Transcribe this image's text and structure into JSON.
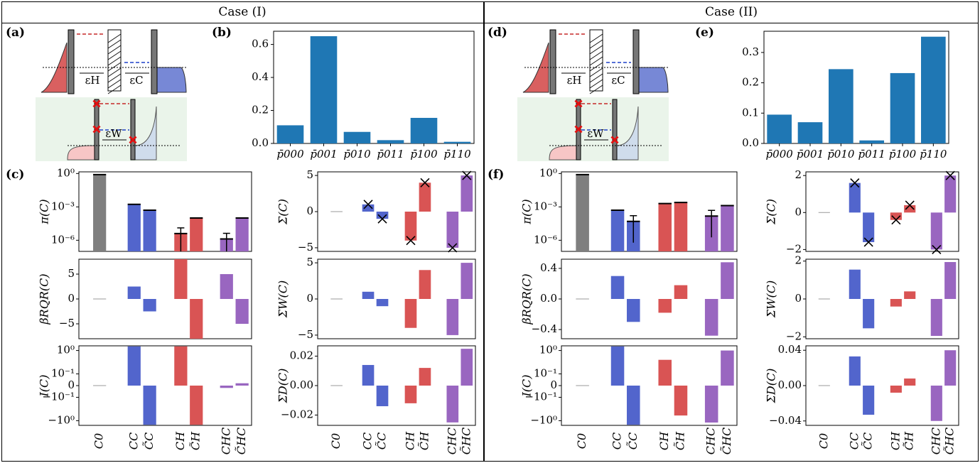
{
  "cases": [
    {
      "title": "Case (I)",
      "labels": [
        "(a)",
        "(b)",
        "(c)"
      ]
    },
    {
      "title": "Case (II)",
      "labels": [
        "(d)",
        "(e)",
        "(f)"
      ]
    }
  ],
  "schematic": {
    "eps_h": "εH",
    "eps_c": "εC",
    "eps_w": "εW"
  },
  "colors": {
    "blue_bar": "#1f77b4",
    "c_blue": "#5265cc",
    "c_red": "#d95454",
    "c_purple": "#9966c0",
    "c_gray": "#7f7f7f",
    "hot_fill": "#d96060",
    "cold_fill": "#7788d6",
    "hot_light": "#f7c6c6",
    "cold_light": "#cfdcec",
    "green_box": "#eaf4ea"
  },
  "chart_data": [
    {
      "id": "b",
      "type": "bar",
      "categories": [
        "p̄000",
        "p̄001",
        "p̄010",
        "p̄011",
        "p̄100",
        "p̄110"
      ],
      "values": [
        0.11,
        0.65,
        0.07,
        0.02,
        0.155,
        0.01
      ],
      "yticks": [
        "0.0",
        "0.2",
        "0.4",
        "0.6"
      ],
      "ylim": [
        0,
        0.68
      ]
    },
    {
      "id": "e",
      "type": "bar",
      "categories": [
        "p̄000",
        "p̄001",
        "p̄010",
        "p̄011",
        "p̄100",
        "p̄110"
      ],
      "values": [
        0.095,
        0.07,
        0.245,
        0.01,
        0.232,
        0.352
      ],
      "yticks": [
        "0.0",
        "0.1",
        "0.2",
        "0.3"
      ],
      "ylim": [
        0,
        0.37
      ]
    },
    {
      "id": "c_pi",
      "type": "bar",
      "scale": "log",
      "ylabel": "π(C)",
      "categories": [
        "C0",
        "CC",
        "C̃C",
        "CH",
        "C̃H",
        "CHC",
        "C̃HC"
      ],
      "values": [
        0.8,
        0.0017,
        0.0005,
        4e-06,
        0.0001,
        1.3e-06,
        0.0001
      ],
      "errors": [
        0,
        0,
        0,
        1,
        0,
        1,
        0
      ],
      "yticks": [
        "10⁰",
        "10⁻³",
        "10⁻⁶"
      ]
    },
    {
      "id": "c_sigma",
      "type": "bar",
      "ylabel": "Σ(C)",
      "categories": [
        "C0",
        "CC",
        "C̃C",
        "CH",
        "C̃H",
        "CHC",
        "C̃HC"
      ],
      "values": [
        0,
        1.0,
        -1.0,
        -4.0,
        4.0,
        -5.0,
        5.0
      ],
      "markers": [
        null,
        1.0,
        -1.0,
        -4.0,
        4.0,
        -5.0,
        5.0
      ],
      "yticks": [
        "5",
        "0",
        "−5"
      ],
      "ylim": [
        -5.5,
        5.5
      ]
    },
    {
      "id": "c_bq",
      "type": "bar",
      "ylabel": "βRQR(C)",
      "categories": [
        "C0",
        "CC",
        "C̃C",
        "CH",
        "C̃H",
        "CHC",
        "C̃HC"
      ],
      "values": [
        0,
        2.5,
        -2.5,
        8.0,
        -8.0,
        5.0,
        -5.0
      ],
      "yticks": [
        "5",
        "0",
        "−5"
      ],
      "ylim": [
        -8,
        8
      ]
    },
    {
      "id": "c_sw",
      "type": "bar",
      "ylabel": "ΣW(C)",
      "categories": [
        "C0",
        "CC",
        "C̃C",
        "CH",
        "C̃H",
        "CHC",
        "C̃HC"
      ],
      "values": [
        0,
        1.0,
        -1.0,
        -4.0,
        4.0,
        -5.0,
        5.0
      ],
      "yticks": [
        "5",
        "0",
        "−5"
      ],
      "ylim": [
        -5.5,
        5.5
      ]
    },
    {
      "id": "c_i",
      "type": "bar",
      "scale": "symlog",
      "ylabel": "I(C)",
      "categories": [
        "C0",
        "CC",
        "C̃C",
        "CH",
        "C̃H",
        "CHC",
        "C̃HC"
      ],
      "values": [
        0,
        1.5,
        -1.5,
        1.5,
        -1.5,
        -0.02,
        0.02
      ],
      "yticks": [
        "10⁰",
        "10⁻¹",
        "0",
        "−10⁻¹",
        "−10⁰"
      ]
    },
    {
      "id": "c_sd",
      "type": "bar",
      "ylabel": "ΣD(C)",
      "categories": [
        "C0",
        "CC",
        "C̃C",
        "CH",
        "C̃H",
        "CHC",
        "C̃HC"
      ],
      "values": [
        0,
        0.014,
        -0.014,
        -0.012,
        0.012,
        -0.025,
        0.025
      ],
      "yticks": [
        "0.02",
        "0.00",
        "−0.02"
      ],
      "ylim": [
        -0.027,
        0.027
      ]
    },
    {
      "id": "f_pi",
      "type": "bar",
      "scale": "log",
      "ylabel": "π(C)",
      "categories": [
        "C0",
        "CC",
        "C̃C",
        "CH",
        "C̃H",
        "CHC",
        "C̃HC"
      ],
      "values": [
        0.8,
        0.0005,
        5e-05,
        0.002,
        0.0025,
        0.00015,
        0.0013
      ],
      "errors": [
        0,
        0,
        1,
        0,
        0,
        1,
        0
      ],
      "yticks": [
        "10⁰",
        "10⁻³",
        "10⁻⁶"
      ]
    },
    {
      "id": "f_sigma",
      "type": "bar",
      "ylabel": "Σ(C)",
      "categories": [
        "C0",
        "CC",
        "C̃C",
        "CH",
        "C̃H",
        "CHC",
        "C̃HC"
      ],
      "values": [
        0,
        1.6,
        -1.6,
        -0.4,
        0.4,
        -2.0,
        2.0
      ],
      "markers": [
        null,
        1.6,
        -1.6,
        -0.4,
        0.4,
        -2.0,
        2.0
      ],
      "yticks": [
        "2",
        "0",
        "−2"
      ],
      "ylim": [
        -2.1,
        2.2
      ]
    },
    {
      "id": "f_bq",
      "type": "bar",
      "ylabel": "βRQR(C)",
      "categories": [
        "C0",
        "CC",
        "C̃C",
        "CH",
        "C̃H",
        "CHC",
        "C̃HC"
      ],
      "values": [
        0,
        0.3,
        -0.3,
        -0.18,
        0.18,
        -0.48,
        0.48
      ],
      "yticks": [
        "0.4",
        "0.0",
        "−0.4"
      ],
      "ylim": [
        -0.52,
        0.52
      ]
    },
    {
      "id": "f_sw",
      "type": "bar",
      "ylabel": "ΣW(C)",
      "categories": [
        "C0",
        "CC",
        "C̃C",
        "CH",
        "C̃H",
        "CHC",
        "C̃HC"
      ],
      "values": [
        0,
        1.55,
        -1.55,
        -0.4,
        0.4,
        -1.95,
        1.95
      ],
      "yticks": [
        "2",
        "0",
        "−2"
      ],
      "ylim": [
        -2.1,
        2.1
      ]
    },
    {
      "id": "f_i",
      "type": "bar",
      "scale": "symlog",
      "ylabel": "I(C)",
      "categories": [
        "C0",
        "CC",
        "C̃C",
        "CH",
        "C̃H",
        "CHC",
        "C̃HC"
      ],
      "values": [
        0,
        1.5,
        -1.5,
        0.4,
        -0.6,
        -1.2,
        1.0
      ],
      "yticks": [
        "10⁰",
        "10⁻¹",
        "0",
        "−10⁻¹",
        "−10⁰"
      ]
    },
    {
      "id": "f_sd",
      "type": "bar",
      "ylabel": "ΣD(C)",
      "categories": [
        "C0",
        "CC",
        "C̃C",
        "CH",
        "C̃H",
        "CHC",
        "C̃HC"
      ],
      "values": [
        0,
        0.033,
        -0.033,
        -0.008,
        0.008,
        -0.04,
        0.04
      ],
      "yticks": [
        "0.04",
        "0.00",
        "−0.04"
      ],
      "ylim": [
        -0.045,
        0.045
      ]
    }
  ]
}
